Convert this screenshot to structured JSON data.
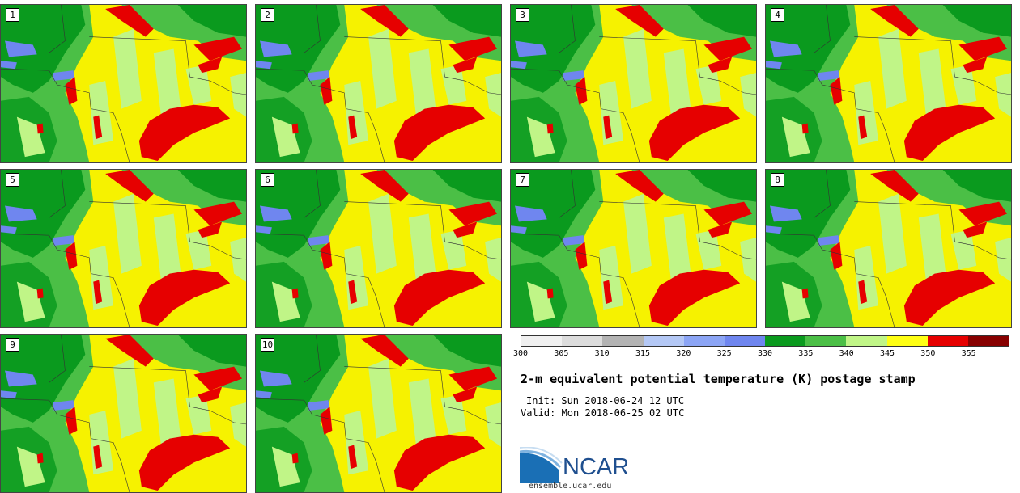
{
  "members": [
    {
      "label": "1"
    },
    {
      "label": "2"
    },
    {
      "label": "3"
    },
    {
      "label": "4"
    },
    {
      "label": "5"
    },
    {
      "label": "6"
    },
    {
      "label": "7"
    },
    {
      "label": "8"
    },
    {
      "label": "9"
    },
    {
      "label": "10"
    }
  ],
  "colorbar": {
    "ticks": [
      "300",
      "305",
      "310",
      "315",
      "320",
      "325",
      "330",
      "335",
      "340",
      "345",
      "350",
      "355"
    ],
    "colors": [
      "#f0f0f0",
      "#dcdcdc",
      "#b3b3b3",
      "#b4c8f5",
      "#8ca5f5",
      "#6f86ef",
      "#0a9a1e",
      "#4bbf46",
      "#c0f587",
      "#ffff14",
      "#e60000",
      "#870000"
    ]
  },
  "title": "2-m equivalent potential temperature (K) postage stamp",
  "init": "Init: Sun 2018-06-24 12 UTC",
  "valid": "Valid: Mon 2018-06-25 02 UTC",
  "logo": {
    "wordmark": "NCAR",
    "url": "ensemble.ucar.edu"
  }
}
